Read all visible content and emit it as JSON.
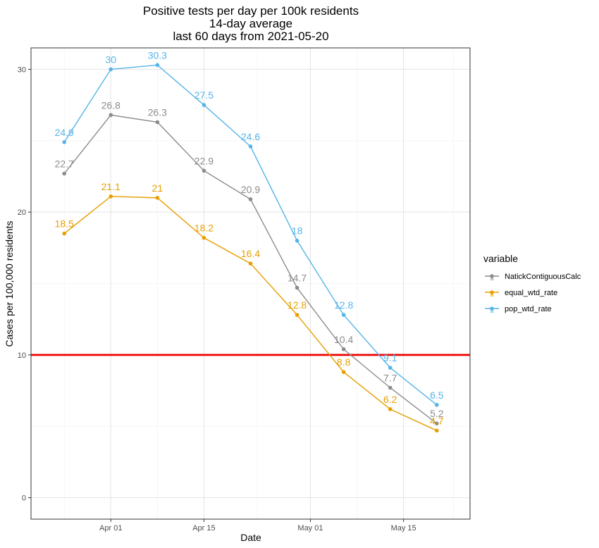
{
  "chart_data": {
    "type": "line",
    "title": [
      "Positive tests per day per 100k residents",
      "14-day average",
      "last 60 days from 2021-05-20"
    ],
    "xlabel": "Date",
    "ylabel": "Cases per 100,000 residents",
    "x": [
      "2021-03-25",
      "2021-04-01",
      "2021-04-08",
      "2021-04-15",
      "2021-04-22",
      "2021-04-29",
      "2021-05-06",
      "2021-05-13",
      "2021-05-20"
    ],
    "xlim": [
      "2021-03-20",
      "2021-05-25"
    ],
    "xticks": [
      {
        "date": "2021-04-01",
        "label": "Apr 01"
      },
      {
        "date": "2021-04-15",
        "label": "Apr 15"
      },
      {
        "date": "2021-05-01",
        "label": "May 01"
      },
      {
        "date": "2021-05-15",
        "label": "May 15"
      }
    ],
    "ylim": [
      -1.5,
      31.5
    ],
    "yticks": [
      0,
      10,
      20,
      30
    ],
    "grid": true,
    "reference_line": {
      "y": 10,
      "color": "#ee0000"
    },
    "series": [
      {
        "name": "NatickContiguousCalc",
        "color": "#8c8c8c",
        "values": [
          22.7,
          26.8,
          26.3,
          22.9,
          20.9,
          14.7,
          10.4,
          7.7,
          5.2
        ],
        "labels": [
          "22.7",
          "26.8",
          "26.3",
          "22.9",
          "20.9",
          "14.7",
          "10.4",
          "7.7",
          "5.2"
        ]
      },
      {
        "name": "equal_wtd_rate",
        "color": "#e69f00",
        "values": [
          18.5,
          21.1,
          21.0,
          18.2,
          16.4,
          12.8,
          8.8,
          6.2,
          4.7
        ],
        "labels": [
          "18.5",
          "21.1",
          "21",
          "18.2",
          "16.4",
          "12.8",
          "8.8",
          "6.2",
          "4.7"
        ]
      },
      {
        "name": "pop_wtd_rate",
        "color": "#56b4e9",
        "values": [
          24.9,
          30.0,
          30.3,
          27.5,
          24.6,
          18.0,
          12.8,
          9.1,
          6.5
        ],
        "labels": [
          "24.9",
          "30",
          "30.3",
          "27.5",
          "24.6",
          "18",
          "12.8",
          "9.1",
          "6.5"
        ]
      }
    ],
    "legend": {
      "title": "variable",
      "position": "right",
      "key_glyph": "a"
    }
  }
}
